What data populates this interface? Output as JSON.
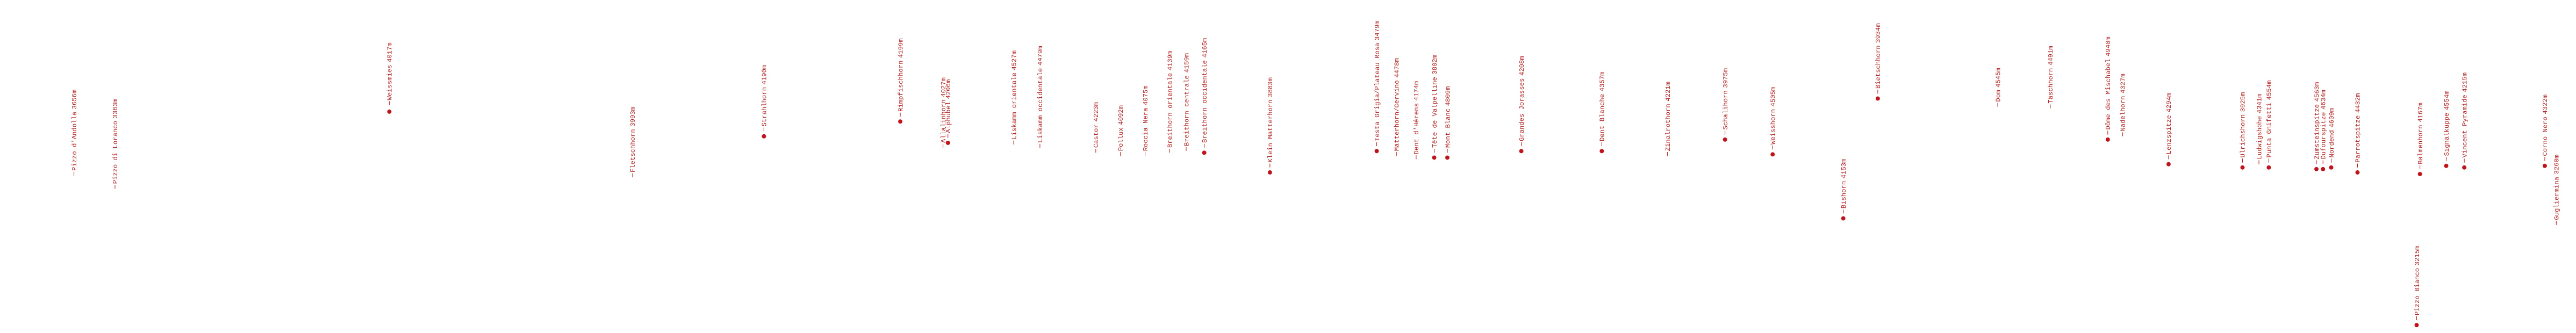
{
  "peaks": [
    {
      "name": "Pizzo d'Andolla",
      "elevation": "3656m"
    },
    {
      "name": "Pizzo di Loranco",
      "elevation": "3363m"
    },
    {
      "name": "Weissmies",
      "elevation": "4017m"
    },
    {
      "name": "Fletschhorn",
      "elevation": "3993m"
    },
    {
      "name": "Strahlhorn",
      "elevation": "4190m"
    },
    {
      "name": "Rimpfischhorn",
      "elevation": "4199m"
    },
    {
      "name": "Allalinhorn",
      "elevation": "4027m"
    },
    {
      "name": "Alphubel",
      "elevation": "4206m"
    },
    {
      "name": "Liskamm orientale",
      "elevation": "4527m"
    },
    {
      "name": "Liskamm occidentale",
      "elevation": "4479m"
    },
    {
      "name": "Castor",
      "elevation": "4223m"
    },
    {
      "name": "Pollux",
      "elevation": "4092m"
    },
    {
      "name": "Roccia Nera",
      "elevation": "4075m"
    },
    {
      "name": "Breithorn orientale",
      "elevation": "4139m"
    },
    {
      "name": "Breithorn centrale",
      "elevation": "4159m"
    },
    {
      "name": "Breithorn occidentale",
      "elevation": "4165m"
    },
    {
      "name": "Klein Matterhorn",
      "elevation": "3883m"
    },
    {
      "name": "Testa Grigia/Plateau Rosa",
      "elevation": "3479m"
    },
    {
      "name": "Matterhorn/Cervino",
      "elevation": "4478m"
    },
    {
      "name": "Dent d'Hérens",
      "elevation": "4174m"
    },
    {
      "name": "Tête de Valpelline",
      "elevation": "3802m"
    },
    {
      "name": "Mont Blanc",
      "elevation": "4809m"
    },
    {
      "name": "Grandes Jorasses",
      "elevation": "4208m"
    },
    {
      "name": "Dent Blanche",
      "elevation": "4357m"
    },
    {
      "name": "Zinalrothorn",
      "elevation": "4221m"
    },
    {
      "name": "Schalihorn",
      "elevation": "3975m"
    },
    {
      "name": "Weisshorn",
      "elevation": "4505m"
    },
    {
      "name": "Bishorn",
      "elevation": "4153m"
    },
    {
      "name": "Bietschhorn",
      "elevation": "3934m"
    },
    {
      "name": "Dom",
      "elevation": "4545m"
    },
    {
      "name": "Täschhorn",
      "elevation": "4491m"
    },
    {
      "name": "Dôme des Mischabel",
      "elevation": "4940m"
    },
    {
      "name": "Nadelhorn",
      "elevation": "4327m"
    },
    {
      "name": "Lenzspitze",
      "elevation": "4294m"
    },
    {
      "name": "Ulrichshorn",
      "elevation": "3925m"
    },
    {
      "name": "Ludwigshöhe",
      "elevation": "4341m"
    },
    {
      "name": "Punta Gnifetti",
      "elevation": "4554m"
    },
    {
      "name": "Zumsteinspitze",
      "elevation": "4563m"
    },
    {
      "name": "Dufourspitze",
      "elevation": "4634m"
    },
    {
      "name": "Nordend",
      "elevation": "4609m"
    },
    {
      "name": "Parrotspitze",
      "elevation": "4432m"
    },
    {
      "name": "Balmenhorn",
      "elevation": "4167m"
    },
    {
      "name": "Pizzo Bianco",
      "elevation": "3215m"
    },
    {
      "name": "Signalkuppe",
      "elevation": "4554m"
    },
    {
      "name": "Vincent Pyramide",
      "elevation": "4215m"
    },
    {
      "name": "Corno Nero",
      "elevation": "4322m"
    },
    {
      "name": "Gugliermina",
      "elevation": "3260m"
    }
  ]
}
